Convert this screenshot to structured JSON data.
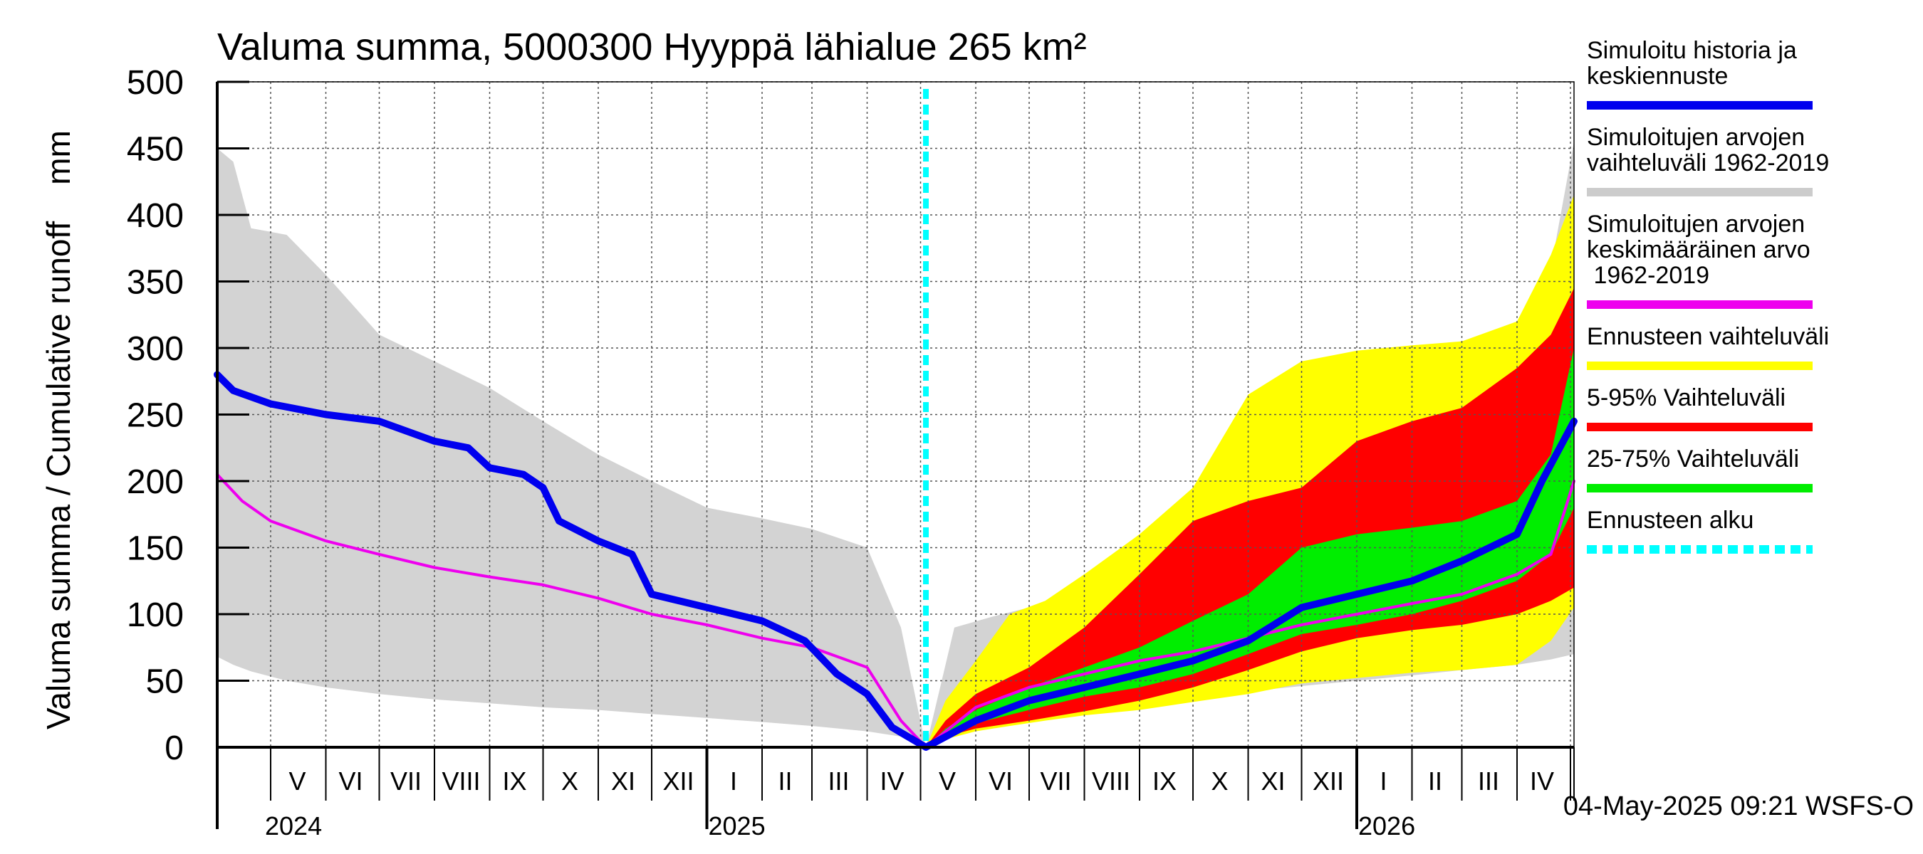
{
  "chart_data": {
    "type": "area",
    "title": "Valuma summa, 5000300 Hyyppä lähialue 265 km²",
    "ylabel": "Valuma summa / Cumulative runoff    mm",
    "ylim": [
      0,
      500
    ],
    "yticks": [
      0,
      50,
      100,
      150,
      200,
      250,
      300,
      350,
      400,
      450,
      500
    ],
    "grid": true,
    "legend_position": "right",
    "x_range": [
      "2024-04-01",
      "2026-05-03"
    ],
    "forecast_start": "2025-05-04",
    "month_labels": [
      {
        "label": "V",
        "date": "2024-05-16"
      },
      {
        "label": "VI",
        "date": "2024-06-15"
      },
      {
        "label": "VII",
        "date": "2024-07-16"
      },
      {
        "label": "VIII",
        "date": "2024-08-16"
      },
      {
        "label": "IX",
        "date": "2024-09-15"
      },
      {
        "label": "X",
        "date": "2024-10-16"
      },
      {
        "label": "XI",
        "date": "2024-11-15"
      },
      {
        "label": "XII",
        "date": "2024-12-16"
      },
      {
        "label": "I",
        "date": "2025-01-16"
      },
      {
        "label": "II",
        "date": "2025-02-14"
      },
      {
        "label": "III",
        "date": "2025-03-16"
      },
      {
        "label": "IV",
        "date": "2025-04-15"
      },
      {
        "label": "V",
        "date": "2025-05-16"
      },
      {
        "label": "VI",
        "date": "2025-06-15"
      },
      {
        "label": "VII",
        "date": "2025-07-16"
      },
      {
        "label": "VIII",
        "date": "2025-08-16"
      },
      {
        "label": "IX",
        "date": "2025-09-15"
      },
      {
        "label": "X",
        "date": "2025-10-16"
      },
      {
        "label": "XI",
        "date": "2025-11-15"
      },
      {
        "label": "XII",
        "date": "2025-12-16"
      },
      {
        "label": "I",
        "date": "2026-01-16"
      },
      {
        "label": "II",
        "date": "2026-02-14"
      },
      {
        "label": "III",
        "date": "2026-03-16"
      },
      {
        "label": "IV",
        "date": "2026-04-15"
      }
    ],
    "year_labels": [
      {
        "label": "2024",
        "date": "2024-05-01"
      },
      {
        "label": "2025",
        "date": "2025-01-01"
      },
      {
        "label": "2026",
        "date": "2026-01-01"
      }
    ],
    "legend": [
      {
        "label": "Simuloitu historia ja\nkeskiennuste",
        "color": "#0000ee",
        "dashed": false
      },
      {
        "label": "Simuloitujen arvojen\nvaihteluväli 1962-2019",
        "color": "#cccccc",
        "dashed": false
      },
      {
        "label": "Simuloitujen arvojen\nkeskimääräinen arvo\n   1962-2019",
        "color": "#ee00ee",
        "dashed": false
      },
      {
        "label": "Ennusteen vaihteluväli",
        "color": "#ffff00",
        "dashed": false
      },
      {
        "label": "5-95% Vaihteluväli",
        "color": "#ff0000",
        "dashed": false
      },
      {
        "label": "25-75% Vaihteluväli",
        "color": "#00ee00",
        "dashed": false
      },
      {
        "label": "Ennusteen alku",
        "color": "#00ffff",
        "dashed": true
      }
    ],
    "timestamp": "04-May-2025 09:21 WSFS-O",
    "series": [
      {
        "name": "Simuloitujen arvojen vaihteluväli 1962-2019",
        "color": "#d3d3d3",
        "kind": "band",
        "x": [
          "2024-04-01",
          "2024-04-10",
          "2024-04-20",
          "2024-05-10",
          "2024-06-01",
          "2024-07-01",
          "2024-08-01",
          "2024-09-01",
          "2024-10-01",
          "2024-11-01",
          "2024-12-01",
          "2025-01-01",
          "2025-02-01",
          "2025-03-01",
          "2025-04-01",
          "2025-04-20",
          "2025-05-04",
          "2025-05-20",
          "2025-06-10",
          "2025-07-01",
          "2025-08-01",
          "2025-09-01",
          "2025-10-01",
          "2025-11-01",
          "2025-12-01",
          "2026-01-01",
          "2026-02-01",
          "2026-03-01",
          "2026-04-01",
          "2026-04-20",
          "2026-05-03"
        ],
        "low": [
          68,
          62,
          57,
          50,
          45,
          40,
          36,
          33,
          30,
          28,
          25,
          22,
          19,
          16,
          12,
          8,
          0,
          8,
          18,
          22,
          26,
          30,
          36,
          42,
          46,
          50,
          54,
          58,
          62,
          66,
          70
        ],
        "high": [
          450,
          440,
          390,
          385,
          355,
          310,
          290,
          270,
          245,
          220,
          200,
          180,
          172,
          164,
          150,
          90,
          0,
          90,
          98,
          105,
          112,
          120,
          160,
          235,
          255,
          270,
          278,
          285,
          300,
          360,
          455
        ]
      },
      {
        "name": "Ennusteen vaihteluväli",
        "color": "#ffff00",
        "kind": "band",
        "x": [
          "2025-05-04",
          "2025-05-15",
          "2025-06-01",
          "2025-06-20",
          "2025-07-10",
          "2025-08-01",
          "2025-09-01",
          "2025-10-01",
          "2025-11-01",
          "2025-12-01",
          "2026-01-01",
          "2026-02-01",
          "2026-03-01",
          "2026-04-01",
          "2026-04-20",
          "2026-05-03"
        ],
        "low": [
          0,
          6,
          12,
          16,
          20,
          24,
          28,
          34,
          40,
          48,
          52,
          56,
          58,
          62,
          80,
          105
        ],
        "high": [
          0,
          35,
          65,
          100,
          110,
          130,
          160,
          195,
          265,
          290,
          298,
          302,
          305,
          320,
          370,
          415
        ]
      },
      {
        "name": "5-95% Vaihteluväli",
        "color": "#ff0000",
        "kind": "band",
        "x": [
          "2025-05-04",
          "2025-05-15",
          "2025-06-01",
          "2025-07-01",
          "2025-08-01",
          "2025-09-01",
          "2025-10-01",
          "2025-11-01",
          "2025-12-01",
          "2026-01-01",
          "2026-02-01",
          "2026-03-01",
          "2026-04-01",
          "2026-04-20",
          "2026-05-03"
        ],
        "low": [
          0,
          8,
          14,
          20,
          27,
          35,
          45,
          58,
          72,
          82,
          88,
          92,
          100,
          110,
          120
        ],
        "high": [
          0,
          20,
          40,
          60,
          90,
          130,
          170,
          185,
          195,
          230,
          245,
          255,
          285,
          310,
          345
        ]
      },
      {
        "name": "25-75% Vaihteluväli",
        "color": "#00ee00",
        "kind": "band",
        "x": [
          "2025-05-04",
          "2025-05-15",
          "2025-06-01",
          "2025-07-01",
          "2025-08-01",
          "2025-09-01",
          "2025-10-01",
          "2025-11-01",
          "2025-12-01",
          "2026-01-01",
          "2026-02-01",
          "2026-03-01",
          "2026-04-01",
          "2026-04-20",
          "2026-05-03"
        ],
        "low": [
          0,
          10,
          18,
          28,
          38,
          45,
          55,
          70,
          85,
          92,
          100,
          110,
          125,
          145,
          180
        ],
        "high": [
          0,
          14,
          28,
          45,
          60,
          75,
          95,
          115,
          150,
          160,
          165,
          170,
          185,
          220,
          300
        ]
      },
      {
        "name": "Simuloitujen arvojen keskimääräinen arvo 1962-2019",
        "color": "#ee00ee",
        "kind": "line",
        "x": [
          "2024-04-01",
          "2024-04-15",
          "2024-05-01",
          "2024-06-01",
          "2024-07-01",
          "2024-08-01",
          "2024-09-01",
          "2024-10-01",
          "2024-11-01",
          "2024-12-01",
          "2025-01-01",
          "2025-02-01",
          "2025-03-01",
          "2025-04-01",
          "2025-04-20",
          "2025-05-04",
          "2025-06-01",
          "2025-07-01",
          "2025-08-01",
          "2025-09-01",
          "2025-10-01",
          "2025-11-01",
          "2025-12-01",
          "2026-01-01",
          "2026-02-01",
          "2026-03-01",
          "2026-04-01",
          "2026-04-20",
          "2026-05-03"
        ],
        "y": [
          205,
          185,
          170,
          155,
          145,
          135,
          128,
          122,
          112,
          100,
          92,
          82,
          75,
          60,
          20,
          0,
          30,
          45,
          55,
          65,
          72,
          82,
          92,
          100,
          108,
          115,
          130,
          145,
          200
        ]
      },
      {
        "name": "Simuloitu historia ja keskiennuste",
        "color": "#0000ee",
        "kind": "line",
        "x": [
          "2024-04-01",
          "2024-04-10",
          "2024-05-01",
          "2024-06-01",
          "2024-07-01",
          "2024-08-01",
          "2024-08-20",
          "2024-09-01",
          "2024-09-20",
          "2024-10-01",
          "2024-10-10",
          "2024-11-01",
          "2024-11-20",
          "2024-12-01",
          "2025-01-01",
          "2025-02-01",
          "2025-02-25",
          "2025-03-15",
          "2025-04-01",
          "2025-04-15",
          "2025-05-04",
          "2025-06-01",
          "2025-07-01",
          "2025-08-01",
          "2025-09-01",
          "2025-10-01",
          "2025-11-01",
          "2025-12-01",
          "2026-01-01",
          "2026-02-01",
          "2026-03-01",
          "2026-04-01",
          "2026-04-15",
          "2026-05-03"
        ],
        "y": [
          280,
          268,
          258,
          250,
          245,
          230,
          225,
          210,
          205,
          195,
          170,
          155,
          145,
          115,
          105,
          95,
          80,
          55,
          40,
          15,
          0,
          20,
          35,
          45,
          55,
          65,
          80,
          105,
          115,
          125,
          140,
          160,
          200,
          245
        ]
      }
    ]
  }
}
